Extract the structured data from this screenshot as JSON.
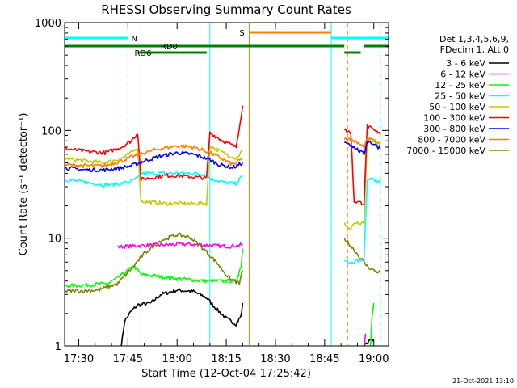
{
  "chart_data": {
    "type": "line",
    "title": "RHESSI Observing Summary Count Rates",
    "xlabel": "Start Time (12-Oct-04 17:25:42)",
    "ylabel": "Count Rate (s⁻¹ detector⁻¹)",
    "y_scale": "log",
    "ylim": [
      1,
      1000
    ],
    "xlim": [
      "17:25:42",
      "19:04:30"
    ],
    "x_ticks": [
      "17:30",
      "17:45",
      "18:00",
      "18:15",
      "18:30",
      "18:45",
      "19:00"
    ],
    "y_ticks": [
      "1",
      "10",
      "100",
      "1000"
    ],
    "legend_header": [
      "Det 1,3,4,5,6,9,",
      "FDecim 1, Att 0"
    ],
    "legend_position": "right",
    "series": [
      {
        "name": "3 - 6 keV",
        "color": "#000000",
        "points": [
          [
            "17:43:00",
            1.0
          ],
          [
            "17:44:00",
            1.7
          ],
          [
            "17:46:00",
            2.1
          ],
          [
            "17:48:00",
            2.4
          ],
          [
            "17:52:00",
            2.5
          ],
          [
            "17:55:00",
            3.0
          ],
          [
            "18:00:00",
            3.3
          ],
          [
            "18:05:00",
            3.2
          ],
          [
            "18:09:00",
            2.8
          ],
          [
            "18:12:00",
            2.2
          ],
          [
            "18:15:00",
            1.8
          ],
          [
            "18:18:00",
            1.6
          ],
          [
            "18:19:30",
            1.9
          ],
          [
            "18:20:00",
            2.5
          ]
        ]
      },
      {
        "name": "6 - 12 keV",
        "color": "#ff00ff",
        "points": [
          [
            "17:42:00",
            8.3
          ],
          [
            "17:47:00",
            8.5
          ],
          [
            "17:52:00",
            8.6
          ],
          [
            "17:57:00",
            8.7
          ],
          [
            "18:02:00",
            8.8
          ],
          [
            "18:07:00",
            8.7
          ],
          [
            "18:12:00",
            8.5
          ],
          [
            "18:16:00",
            8.4
          ],
          [
            "18:20:00",
            8.7
          ]
        ]
      },
      {
        "name": "12 - 25 keV",
        "color": "#00ff00",
        "points": [
          [
            "17:25:42",
            3.6
          ],
          [
            "17:34:00",
            3.7
          ],
          [
            "17:39:00",
            3.8
          ],
          [
            "17:42:00",
            4.3
          ],
          [
            "17:45:00",
            5.0
          ],
          [
            "17:47:00",
            5.5
          ],
          [
            "17:49:00",
            4.6
          ],
          [
            "17:55:00",
            4.4
          ],
          [
            "18:00:00",
            4.2
          ],
          [
            "18:05:00",
            4.1
          ],
          [
            "18:09:00",
            4.0
          ],
          [
            "18:14:00",
            4.0
          ],
          [
            "18:18:00",
            4.0
          ],
          [
            "18:19:30",
            5.5
          ],
          [
            "18:20:00",
            8.0
          ]
        ]
      },
      {
        "name": "25 - 50 keV",
        "color": "#00ffff",
        "points": [
          [
            "17:25:42",
            35
          ],
          [
            "17:32:00",
            33
          ],
          [
            "17:38:00",
            31
          ],
          [
            "17:43:00",
            32
          ],
          [
            "17:46:00",
            34
          ],
          [
            "17:48:00",
            36
          ],
          [
            "17:49:00",
            40
          ],
          [
            "17:56:00",
            40
          ],
          [
            "18:00:00",
            40
          ],
          [
            "18:05:00",
            40
          ],
          [
            "18:09:00",
            39
          ],
          [
            "18:10:00",
            36
          ],
          [
            "18:14:00",
            33
          ],
          [
            "18:18:00",
            32
          ],
          [
            "18:20:00",
            38
          ]
        ]
      },
      {
        "name": "50 - 100 keV",
        "color": "#c8c800",
        "points": [
          [
            "17:25:42",
            55
          ],
          [
            "17:32:00",
            52
          ],
          [
            "17:38:00",
            50
          ],
          [
            "17:43:00",
            55
          ],
          [
            "17:46:00",
            62
          ],
          [
            "17:48:00",
            70
          ],
          [
            "17:49:00",
            22
          ],
          [
            "17:56:00",
            21
          ],
          [
            "18:00:00",
            21
          ],
          [
            "18:05:00",
            21
          ],
          [
            "18:09:00",
            21
          ],
          [
            "18:10:00",
            72
          ],
          [
            "18:14:00",
            62
          ],
          [
            "18:18:00",
            55
          ],
          [
            "18:20:00",
            65
          ]
        ]
      },
      {
        "name": "100 - 300 keV",
        "color": "#ff0000",
        "points": [
          [
            "17:25:42",
            68
          ],
          [
            "17:32:00",
            64
          ],
          [
            "17:38:00",
            62
          ],
          [
            "17:43:00",
            70
          ],
          [
            "17:46:00",
            80
          ],
          [
            "17:48:00",
            95
          ],
          [
            "17:49:00",
            35
          ],
          [
            "17:56:00",
            38
          ],
          [
            "18:00:00",
            38
          ],
          [
            "18:05:00",
            37
          ],
          [
            "18:09:00",
            36
          ],
          [
            "18:10:00",
            95
          ],
          [
            "18:14:00",
            80
          ],
          [
            "18:18:00",
            70
          ],
          [
            "18:20:00",
            170
          ]
        ]
      },
      {
        "name": "300 - 800 keV",
        "color": "#0000ff",
        "points": [
          [
            "17:25:42",
            45
          ],
          [
            "17:32:00",
            43
          ],
          [
            "17:38:00",
            43
          ],
          [
            "17:43:00",
            45
          ],
          [
            "17:47:00",
            48
          ],
          [
            "17:50:00",
            52
          ],
          [
            "17:55:00",
            58
          ],
          [
            "18:00:00",
            62
          ],
          [
            "18:05:00",
            60
          ],
          [
            "18:09:00",
            55
          ],
          [
            "18:13:00",
            48
          ],
          [
            "18:17:00",
            45
          ],
          [
            "18:20:00",
            50
          ]
        ]
      },
      {
        "name": "800 - 7000 keV",
        "color": "#ff8000",
        "points": [
          [
            "17:25:42",
            48
          ],
          [
            "17:32:00",
            47
          ],
          [
            "17:38:00",
            47
          ],
          [
            "17:43:00",
            52
          ],
          [
            "17:47:00",
            58
          ],
          [
            "17:50:00",
            62
          ],
          [
            "17:55:00",
            68
          ],
          [
            "18:00:00",
            72
          ],
          [
            "18:05:00",
            70
          ],
          [
            "18:09:00",
            64
          ],
          [
            "18:13:00",
            56
          ],
          [
            "18:17:00",
            48
          ],
          [
            "18:20:00",
            55
          ]
        ]
      },
      {
        "name": "7000 - 15000 keV",
        "color": "#808000",
        "points": [
          [
            "17:25:42",
            3.2
          ],
          [
            "17:36:00",
            3.3
          ],
          [
            "17:42:00",
            3.8
          ],
          [
            "17:46:00",
            5.2
          ],
          [
            "17:50:00",
            7.2
          ],
          [
            "17:55:00",
            9.5
          ],
          [
            "18:00:00",
            10.8
          ],
          [
            "18:04:00",
            10.2
          ],
          [
            "18:08:00",
            8.0
          ],
          [
            "18:12:00",
            6.0
          ],
          [
            "18:16:00",
            4.2
          ],
          [
            "18:19:00",
            3.8
          ],
          [
            "18:20:00",
            5.0
          ]
        ]
      }
    ],
    "segment2": [
      {
        "name": "3 - 6 keV",
        "points": [
          [
            "18:57:00",
            1.0
          ],
          [
            "18:58:30",
            1.1
          ],
          [
            "19:00:00",
            1.1
          ]
        ]
      },
      {
        "name": "6 - 12 keV",
        "points": [
          [
            "18:57:00",
            1.0
          ],
          [
            "18:57:30",
            1.3
          ]
        ]
      },
      {
        "name": "12 - 25 keV",
        "points": [
          [
            "18:59:00",
            1.0
          ],
          [
            "18:59:30",
            2.0
          ],
          [
            "19:00:00",
            2.5
          ]
        ]
      },
      {
        "name": "25 - 50 keV",
        "points": [
          [
            "18:51:00",
            6.0
          ],
          [
            "18:53:00",
            5.8
          ],
          [
            "18:54:00",
            6.0
          ],
          [
            "18:57:00",
            6.3
          ],
          [
            "18:58:00",
            36
          ],
          [
            "19:00:00",
            35
          ],
          [
            "19:02:00",
            33
          ]
        ]
      },
      {
        "name": "50 - 100 keV",
        "points": [
          [
            "18:51:00",
            14
          ],
          [
            "18:53:00",
            12
          ],
          [
            "18:54:00",
            14
          ],
          [
            "18:57:00",
            14
          ],
          [
            "18:58:00",
            88
          ],
          [
            "19:00:00",
            80
          ],
          [
            "19:02:00",
            72
          ]
        ]
      },
      {
        "name": "100 - 300 keV",
        "points": [
          [
            "18:51:00",
            102
          ],
          [
            "18:53:00",
            95
          ],
          [
            "18:54:00",
            22
          ],
          [
            "18:57:00",
            21
          ],
          [
            "18:58:00",
            110
          ],
          [
            "19:00:00",
            100
          ],
          [
            "19:02:00",
            92
          ]
        ]
      },
      {
        "name": "300 - 800 keV",
        "points": [
          [
            "18:51:00",
            80
          ],
          [
            "18:54:00",
            70
          ],
          [
            "18:57:00",
            60
          ],
          [
            "18:58:00",
            80
          ],
          [
            "19:00:00",
            75
          ],
          [
            "19:02:00",
            68
          ]
        ]
      },
      {
        "name": "800 - 7000 keV",
        "points": [
          [
            "18:51:00",
            85
          ],
          [
            "18:54:00",
            80
          ],
          [
            "18:57:00",
            70
          ],
          [
            "18:58:00",
            82
          ],
          [
            "19:00:00",
            80
          ],
          [
            "19:02:00",
            72
          ]
        ]
      },
      {
        "name": "7000 - 15000 keV",
        "points": [
          [
            "18:51:00",
            10
          ],
          [
            "18:53:00",
            8.5
          ],
          [
            "18:56:00",
            6.5
          ],
          [
            "18:58:00",
            5.5
          ],
          [
            "19:00:00",
            5.0
          ],
          [
            "19:02:00",
            4.8
          ]
        ]
      }
    ],
    "flag_bars": [
      {
        "label": "N",
        "color": "#00ffff",
        "row": 1,
        "segments": [
          [
            "17:25:42",
            "17:45:00"
          ],
          [
            "18:47:00",
            "19:04:30"
          ]
        ],
        "label_at": "17:46:00"
      },
      {
        "label": "S",
        "color": "#ff8000",
        "row": 0,
        "segments": [
          [
            "18:22:00",
            "18:47:00"
          ]
        ],
        "label_at": "18:19:00"
      },
      {
        "label": "RD0",
        "color": "#008000",
        "row": 2,
        "segments": [
          [
            "17:25:42",
            "18:51:00"
          ]
        ],
        "label_at": "17:55:00"
      },
      {
        "label": "RD6",
        "color": "#008000",
        "row": 3,
        "segments": [
          [
            "17:48:00",
            "18:09:00"
          ],
          [
            "18:51:00",
            "18:56:00"
          ]
        ],
        "label_at": "17:47:00"
      },
      {
        "label": "",
        "color": "#008000",
        "row": 2,
        "segments": [
          [
            "18:57:00",
            "19:04:30"
          ]
        ],
        "label_at": ""
      }
    ],
    "vlines": [
      {
        "time": "17:25:42",
        "color": "#00ffff",
        "dashed": false
      },
      {
        "time": "17:45:00",
        "color": "#00ffff",
        "dashed": true
      },
      {
        "time": "17:49:00",
        "color": "#00ffff",
        "dashed": false
      },
      {
        "time": "18:10:00",
        "color": "#00ffff",
        "dashed": false
      },
      {
        "time": "18:22:00",
        "color": "#ff8000",
        "dashed": false
      },
      {
        "time": "18:47:00",
        "color": "#00ffff",
        "dashed": false
      },
      {
        "time": "18:52:00",
        "color": "#ff8000",
        "dashed": true
      },
      {
        "time": "19:02:00",
        "color": "#00ffff",
        "dashed": true
      }
    ],
    "footer_timestamp": "21-Oct-2021 13:10"
  }
}
